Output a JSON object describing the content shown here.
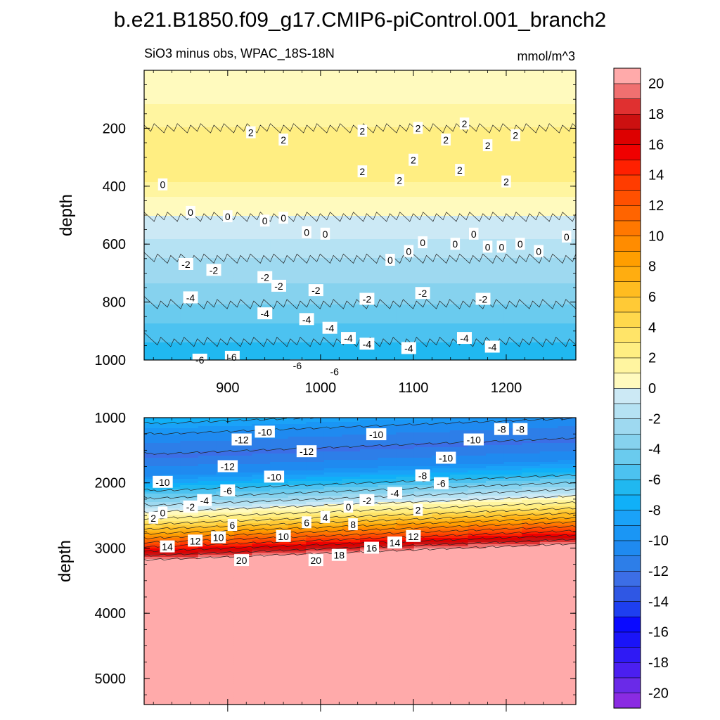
{
  "chart_data": {
    "type": "heatmap",
    "title": "b.e21.B1850.f09_g17.CMIP6-piControl.001_branch2",
    "subtitle": "SiO3 minus obs, WPAC_18S-18N",
    "units": "mmol/m^3",
    "colorbar": {
      "levels": [
        -21,
        -20,
        -19,
        -18,
        -17,
        -16,
        -15,
        -14,
        -13,
        -12,
        -11,
        -10,
        -9,
        -8,
        -7,
        -6,
        -5,
        -4,
        -3,
        -2,
        -1,
        0,
        1,
        2,
        3,
        4,
        5,
        6,
        7,
        8,
        9,
        10,
        11,
        12,
        13,
        14,
        15,
        16,
        17,
        18,
        19,
        20,
        21
      ],
      "tick_labels": [
        "20",
        "18",
        "16",
        "14",
        "12",
        "10",
        "8",
        "6",
        "4",
        "2",
        "0",
        "-2",
        "-4",
        "-6",
        "-8",
        "-10",
        "-12",
        "-14",
        "-16",
        "-18",
        "-20"
      ],
      "tick_values": [
        20,
        18,
        16,
        14,
        12,
        10,
        8,
        6,
        4,
        2,
        0,
        -2,
        -4,
        -6,
        -8,
        -10,
        -12,
        -14,
        -16,
        -18,
        -20
      ],
      "colors": [
        "#8a2be2",
        "#6a2ae8",
        "#4b1ff0",
        "#2f1af5",
        "#1a14f8",
        "#0a0aff",
        "#1e3ff0",
        "#2f57e4",
        "#3c6ee6",
        "#2d7ee8",
        "#1f8af0",
        "#1a96f5",
        "#1aa2f8",
        "#10b0f8",
        "#20b8f0",
        "#4cc2f0",
        "#6acbee",
        "#86d2ee",
        "#9ed9f0",
        "#b5e2f3",
        "#cce9f5",
        "#fffabe",
        "#fff5a0",
        "#ffee82",
        "#ffe468",
        "#ffd84c",
        "#ffca36",
        "#ffbc20",
        "#ffad10",
        "#ff9e00",
        "#ff8c00",
        "#ff7800",
        "#ff6400",
        "#ff5000",
        "#ff3c00",
        "#ff2000",
        "#f00000",
        "#dd0000",
        "#cc1010",
        "#e03030",
        "#f07070",
        "#ffaaaa"
      ]
    },
    "panels": [
      {
        "name": "upper",
        "x_range": [
          810,
          1275
        ],
        "x_ticks": [
          900,
          1000,
          1100,
          1200
        ],
        "x_tick_labels": [
          "900",
          "1000",
          "1100",
          "1200"
        ],
        "ylabel": "depth",
        "y_range": [
          0,
          1000
        ],
        "y_inverted": true,
        "y_ticks": [
          200,
          400,
          600,
          800,
          1000
        ],
        "y_tick_labels": [
          "200",
          "400",
          "600",
          "800",
          "1000"
        ],
        "depth_profile": [
          {
            "depth": 0,
            "value": 0.5
          },
          {
            "depth": 100,
            "value": 0.6
          },
          {
            "depth": 150,
            "value": 1.6
          },
          {
            "depth": 250,
            "value": 2.4
          },
          {
            "depth": 330,
            "value": 2.6
          },
          {
            "depth": 400,
            "value": 1.8
          },
          {
            "depth": 470,
            "value": 0.4
          },
          {
            "depth": 550,
            "value": -0.5
          },
          {
            "depth": 650,
            "value": -2.0
          },
          {
            "depth": 750,
            "value": -3.2
          },
          {
            "depth": 850,
            "value": -4.6
          },
          {
            "depth": 950,
            "value": -6.2
          },
          {
            "depth": 1000,
            "value": -6.8
          }
        ],
        "contour_labels": [
          {
            "x": 925,
            "depth": 215,
            "text": "2"
          },
          {
            "x": 960,
            "depth": 240,
            "text": "2"
          },
          {
            "x": 1045,
            "depth": 210,
            "text": "2"
          },
          {
            "x": 1105,
            "depth": 200,
            "text": "2"
          },
          {
            "x": 1155,
            "depth": 185,
            "text": "2"
          },
          {
            "x": 1210,
            "depth": 225,
            "text": "2"
          },
          {
            "x": 1135,
            "depth": 240,
            "text": "2"
          },
          {
            "x": 1180,
            "depth": 260,
            "text": "2"
          },
          {
            "x": 1100,
            "depth": 310,
            "text": "2"
          },
          {
            "x": 1045,
            "depth": 350,
            "text": "2"
          },
          {
            "x": 1085,
            "depth": 380,
            "text": "2"
          },
          {
            "x": 1150,
            "depth": 345,
            "text": "2"
          },
          {
            "x": 1200,
            "depth": 385,
            "text": "2"
          },
          {
            "x": 830,
            "depth": 395,
            "text": "0"
          },
          {
            "x": 860,
            "depth": 490,
            "text": "0"
          },
          {
            "x": 900,
            "depth": 505,
            "text": "0"
          },
          {
            "x": 940,
            "depth": 520,
            "text": "0"
          },
          {
            "x": 960,
            "depth": 510,
            "text": "0"
          },
          {
            "x": 985,
            "depth": 560,
            "text": "0"
          },
          {
            "x": 1005,
            "depth": 565,
            "text": "0"
          },
          {
            "x": 1075,
            "depth": 655,
            "text": "0"
          },
          {
            "x": 1095,
            "depth": 625,
            "text": "0"
          },
          {
            "x": 1110,
            "depth": 595,
            "text": "0"
          },
          {
            "x": 1145,
            "depth": 600,
            "text": "0"
          },
          {
            "x": 1165,
            "depth": 565,
            "text": "0"
          },
          {
            "x": 1180,
            "depth": 610,
            "text": "0"
          },
          {
            "x": 1195,
            "depth": 610,
            "text": "0"
          },
          {
            "x": 1215,
            "depth": 600,
            "text": "0"
          },
          {
            "x": 1235,
            "depth": 625,
            "text": "0"
          },
          {
            "x": 1265,
            "depth": 575,
            "text": "0"
          },
          {
            "x": 855,
            "depth": 670,
            "text": "-2"
          },
          {
            "x": 885,
            "depth": 690,
            "text": "-2"
          },
          {
            "x": 940,
            "depth": 715,
            "text": "-2"
          },
          {
            "x": 955,
            "depth": 745,
            "text": "-2"
          },
          {
            "x": 995,
            "depth": 760,
            "text": "-2"
          },
          {
            "x": 1050,
            "depth": 790,
            "text": "-2"
          },
          {
            "x": 1110,
            "depth": 770,
            "text": "-2"
          },
          {
            "x": 1175,
            "depth": 790,
            "text": "-2"
          },
          {
            "x": 860,
            "depth": 785,
            "text": "-4"
          },
          {
            "x": 940,
            "depth": 840,
            "text": "-4"
          },
          {
            "x": 985,
            "depth": 860,
            "text": "-4"
          },
          {
            "x": 1010,
            "depth": 890,
            "text": "-4"
          },
          {
            "x": 1030,
            "depth": 925,
            "text": "-4"
          },
          {
            "x": 1050,
            "depth": 945,
            "text": "-4"
          },
          {
            "x": 1095,
            "depth": 960,
            "text": "-4"
          },
          {
            "x": 1155,
            "depth": 925,
            "text": "-4"
          },
          {
            "x": 1185,
            "depth": 955,
            "text": "-4"
          },
          {
            "x": 870,
            "depth": 1000,
            "text": "-6"
          },
          {
            "x": 905,
            "depth": 990,
            "text": "-6"
          },
          {
            "x": 975,
            "depth": 1020,
            "text": "-6"
          },
          {
            "x": 1015,
            "depth": 1040,
            "text": "-6"
          }
        ]
      },
      {
        "name": "lower",
        "x_range": [
          810,
          1275
        ],
        "ylabel": "depth",
        "y_range": [
          1000,
          5400
        ],
        "y_inverted": true,
        "y_ticks": [
          1000,
          2000,
          3000,
          4000,
          5000
        ],
        "y_tick_labels": [
          "1000",
          "2000",
          "3000",
          "4000",
          "5000"
        ],
        "depth_profile": [
          {
            "depth": 1000,
            "value": -6.8
          },
          {
            "depth": 1300,
            "value": -10.5
          },
          {
            "depth": 1600,
            "value": -12.2
          },
          {
            "depth": 1900,
            "value": -10.0
          },
          {
            "depth": 2100,
            "value": -6.5
          },
          {
            "depth": 2300,
            "value": -3.0
          },
          {
            "depth": 2450,
            "value": 0.0
          },
          {
            "depth": 2600,
            "value": 3.0
          },
          {
            "depth": 2750,
            "value": 7.0
          },
          {
            "depth": 2900,
            "value": 11.5
          },
          {
            "depth": 3050,
            "value": 16.0
          },
          {
            "depth": 3200,
            "value": 20.5
          },
          {
            "depth": 5400,
            "value": 21.0
          }
        ],
        "depth_shift_across_x": -250,
        "contour_labels": [
          {
            "x": 940,
            "depth": 1220,
            "text": "-10"
          },
          {
            "x": 915,
            "depth": 1340,
            "text": "-12"
          },
          {
            "x": 985,
            "depth": 1520,
            "text": "-12"
          },
          {
            "x": 1060,
            "depth": 1260,
            "text": "-10"
          },
          {
            "x": 1165,
            "depth": 1340,
            "text": "-10"
          },
          {
            "x": 1195,
            "depth": 1180,
            "text": "-8"
          },
          {
            "x": 1215,
            "depth": 1180,
            "text": "-8"
          },
          {
            "x": 1135,
            "depth": 1620,
            "text": "-10"
          },
          {
            "x": 900,
            "depth": 1750,
            "text": "-12"
          },
          {
            "x": 950,
            "depth": 1910,
            "text": "-10"
          },
          {
            "x": 1110,
            "depth": 1890,
            "text": "-8"
          },
          {
            "x": 1130,
            "depth": 2010,
            "text": "-6"
          },
          {
            "x": 830,
            "depth": 1990,
            "text": "-10"
          },
          {
            "x": 900,
            "depth": 2120,
            "text": "-6"
          },
          {
            "x": 1080,
            "depth": 2160,
            "text": "-4"
          },
          {
            "x": 875,
            "depth": 2270,
            "text": "-4"
          },
          {
            "x": 1050,
            "depth": 2270,
            "text": "-2"
          },
          {
            "x": 860,
            "depth": 2370,
            "text": "-2"
          },
          {
            "x": 1030,
            "depth": 2370,
            "text": "0"
          },
          {
            "x": 1105,
            "depth": 2420,
            "text": "2"
          },
          {
            "x": 830,
            "depth": 2460,
            "text": "0"
          },
          {
            "x": 820,
            "depth": 2540,
            "text": "2"
          },
          {
            "x": 1005,
            "depth": 2530,
            "text": "4"
          },
          {
            "x": 985,
            "depth": 2610,
            "text": "6"
          },
          {
            "x": 1035,
            "depth": 2640,
            "text": "8"
          },
          {
            "x": 905,
            "depth": 2650,
            "text": "6"
          },
          {
            "x": 960,
            "depth": 2820,
            "text": "10"
          },
          {
            "x": 890,
            "depth": 2840,
            "text": "10"
          },
          {
            "x": 865,
            "depth": 2890,
            "text": "12"
          },
          {
            "x": 1100,
            "depth": 2820,
            "text": "12"
          },
          {
            "x": 1080,
            "depth": 2920,
            "text": "14"
          },
          {
            "x": 1055,
            "depth": 3000,
            "text": "16"
          },
          {
            "x": 1020,
            "depth": 3110,
            "text": "18"
          },
          {
            "x": 995,
            "depth": 3190,
            "text": "20"
          },
          {
            "x": 915,
            "depth": 3190,
            "text": "20"
          },
          {
            "x": 835,
            "depth": 2980,
            "text": "14"
          }
        ]
      }
    ],
    "legend": "right"
  }
}
